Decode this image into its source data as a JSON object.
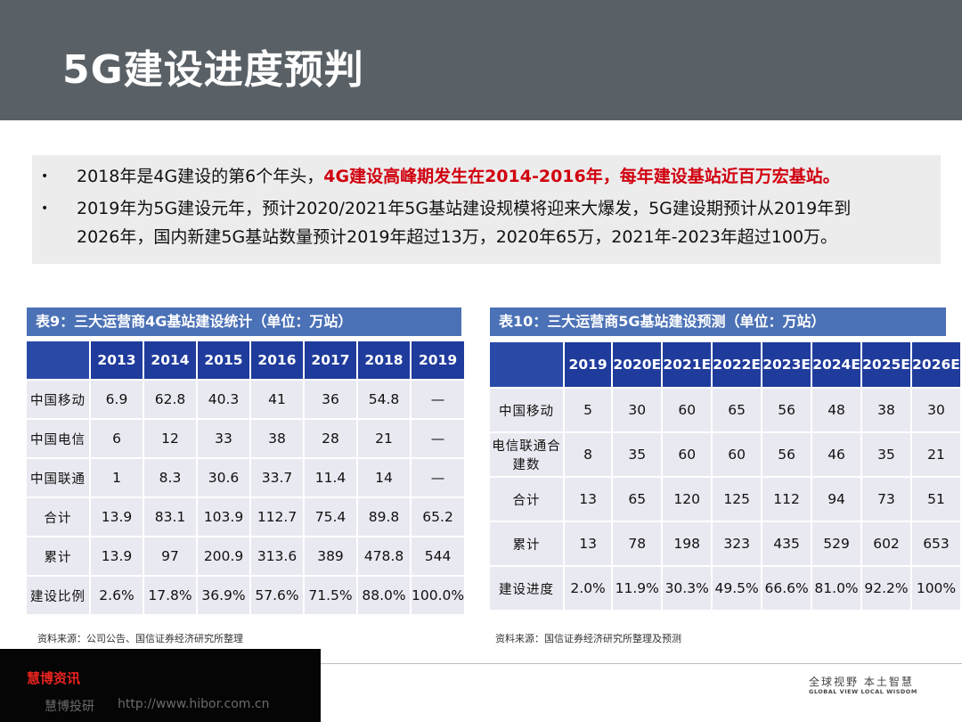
{
  "title": "5G建设进度预判",
  "bullets": [
    {
      "line1_plain": "2018年是4G建设的第6个年头，",
      "line1_red": "4G建设高峰期发生在2014-2016年，每年建设基站近百万宏基站。"
    },
    {
      "line1": "2019年为5G建设元年，预计2020/2021年5G基站建设规模将迎来大爆发，5G建设期预计从2019年到",
      "line2": "2026年，国内新建5G基站数量预计2019年超过13万，2020年65万，2021年-2023年超过100万。"
    }
  ],
  "table4g": {
    "caption": "表9：三大运营商4G基站建设统计（单位：万站）",
    "headers": [
      "",
      "2013",
      "2014",
      "2015",
      "2016",
      "2017",
      "2018",
      "2019"
    ],
    "rows": [
      [
        "中国移动",
        "6.9",
        "62.8",
        "40.3",
        "41",
        "36",
        "54.8",
        "—"
      ],
      [
        "中国电信",
        "6",
        "12",
        "33",
        "38",
        "28",
        "21",
        "—"
      ],
      [
        "中国联通",
        "1",
        "8.3",
        "30.6",
        "33.7",
        "11.4",
        "14",
        "—"
      ],
      [
        "合计",
        "13.9",
        "83.1",
        "103.9",
        "112.7",
        "75.4",
        "89.8",
        "65.2"
      ],
      [
        "累计",
        "13.9",
        "97",
        "200.9",
        "313.6",
        "389",
        "478.8",
        "544"
      ],
      [
        "建设比例",
        "2.6%",
        "17.8%",
        "36.9%",
        "57.6%",
        "71.5%",
        "88.0%",
        "100.0%"
      ]
    ],
    "source": "资料来源：公司公告、国信证券经济研究所整理"
  },
  "table5g": {
    "caption": "表10：三大运营商5G基站建设预测（单位：万站）",
    "headers": [
      "",
      "2019",
      "2020E",
      "2021E",
      "2022E",
      "2023E",
      "2024E",
      "2025E",
      "2026E"
    ],
    "rows": [
      [
        "中国移动",
        "5",
        "30",
        "60",
        "65",
        "56",
        "48",
        "38",
        "30"
      ],
      [
        "电信联通合建数",
        "8",
        "35",
        "60",
        "60",
        "56",
        "46",
        "35",
        "21"
      ],
      [
        "合计",
        "13",
        "65",
        "120",
        "125",
        "112",
        "94",
        "73",
        "51"
      ],
      [
        "累计",
        "13",
        "78",
        "198",
        "323",
        "435",
        "529",
        "602",
        "653"
      ],
      [
        "建设进度",
        "2.0%",
        "11.9%",
        "30.3%",
        "49.5%",
        "66.6%",
        "81.0%",
        "92.2%",
        "100%"
      ]
    ],
    "source": "资料来源：国信证券经济研究所整理及预测"
  },
  "footer": {
    "brand": "慧博资讯",
    "sub": "慧博投研",
    "url": "http://www.hibor.com.cn",
    "slogan_cn": "全球视野  本土智慧",
    "slogan_en": "GLOBAL VIEW   LOCAL WISDOM"
  },
  "colors": {
    "header_bg": "#5a6166",
    "caption_bg": "#4b71b6",
    "table_header_bg": "#1f3b9c",
    "cell_bg": "#e9e9f1",
    "highlight_red": "#d0000f"
  }
}
